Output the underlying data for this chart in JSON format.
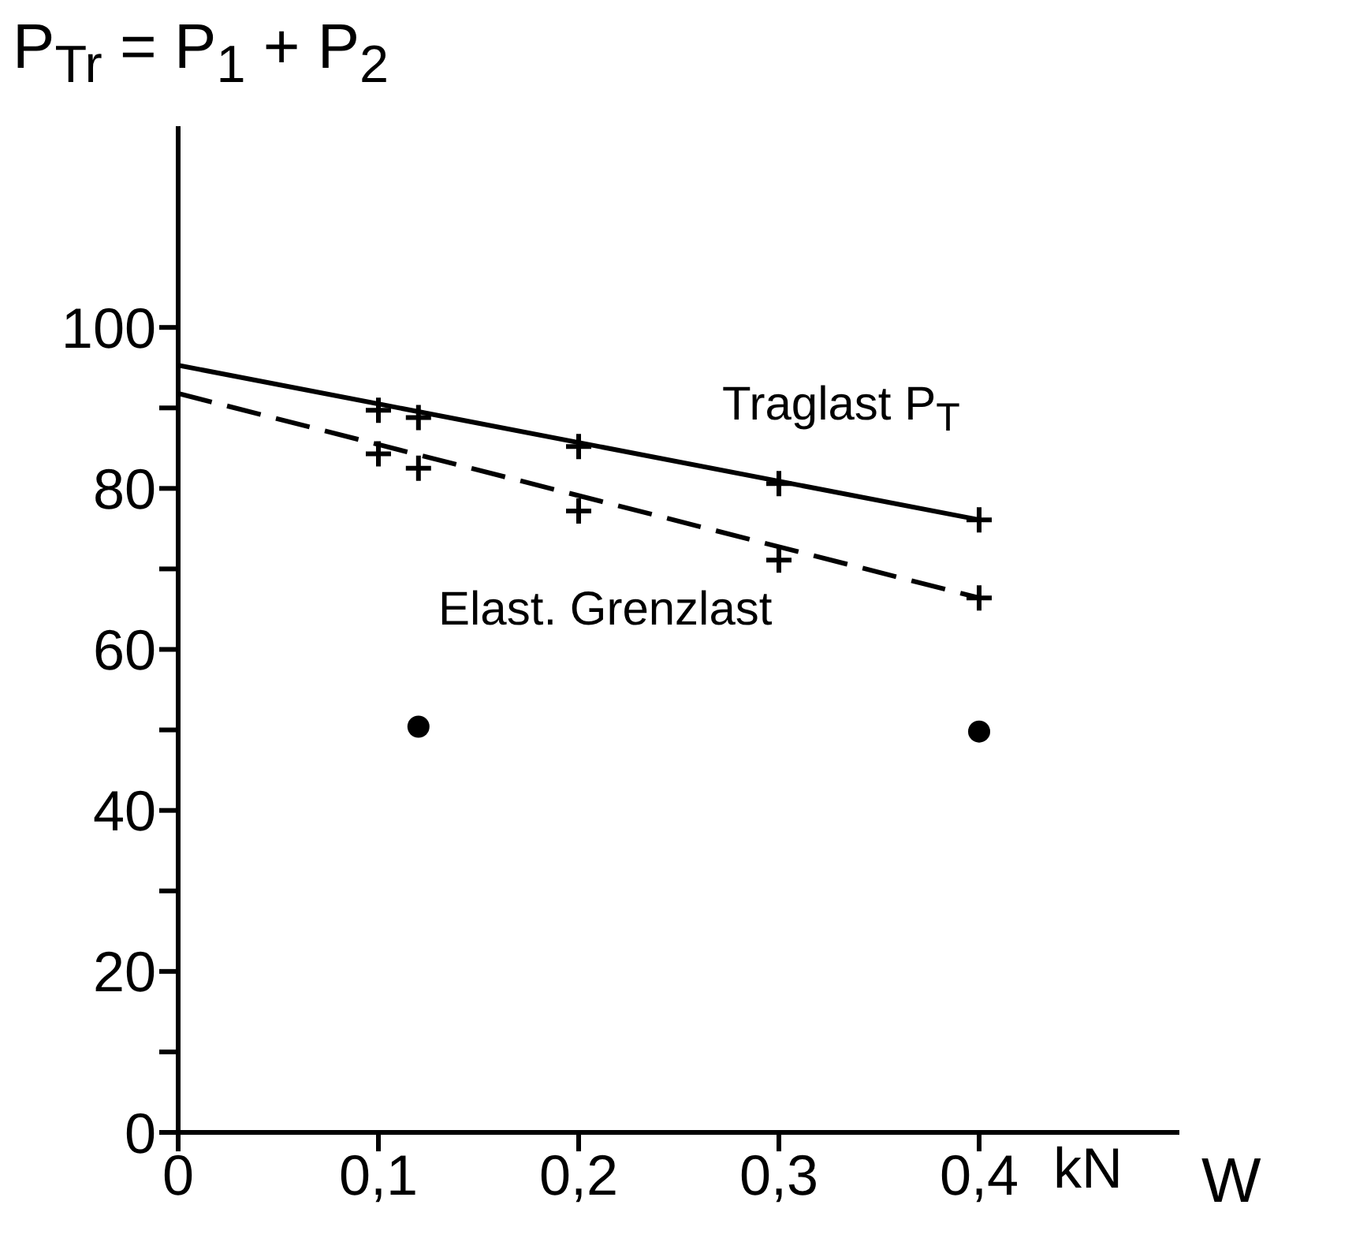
{
  "chart_data": {
    "type": "line",
    "ylabel": "P$_{Tr}$ = P$_{1}$ + P$_{2}$",
    "xlabel": "W",
    "xlim": [
      0,
      0.5
    ],
    "xticks": [
      0,
      {
        "value": 0.1,
        "label": "0,1"
      },
      {
        "value": 0.2,
        "label": "0,2"
      },
      {
        "value": 0.3,
        "label": "0,3"
      },
      {
        "value": 0.4,
        "label": "0,4"
      }
    ],
    "ylim": [
      0,
      125
    ],
    "yticks": [
      0,
      {
        "value": 10,
        "label": null
      },
      20,
      {
        "value": 30,
        "label": null
      },
      40,
      {
        "value": 50,
        "label": null
      },
      60,
      {
        "value": 70,
        "label": null
      },
      80,
      {
        "value": 90,
        "label": null
      },
      100
    ],
    "grid": false,
    "series": [
      {
        "x": [
          0,
          0.4
        ],
        "values": [
          95.3,
          76.1
        ],
        "color": "#000000",
        "line_style": "solid",
        "marker": "none"
      },
      {
        "x": [
          0,
          0.4
        ],
        "values": [
          91.8,
          66.4
        ],
        "color": "#000000",
        "line_style": "dashed",
        "marker": "none"
      },
      {
        "type": "scatter",
        "x": [
          0.1,
          0.12,
          0.2,
          0.3,
          0.4
        ],
        "values": [
          89.7,
          88.8,
          85.2,
          80.6,
          76.1
        ],
        "color": "#000000",
        "marker": "cross"
      },
      {
        "type": "scatter",
        "x": [
          0.1,
          0.12,
          0.2,
          0.3,
          0.4
        ],
        "values": [
          84.3,
          82.5,
          77.2,
          71.1,
          66.4
        ],
        "color": "#000000",
        "marker": "cross"
      },
      {
        "type": "scatter",
        "x": [
          0.12,
          0.4
        ],
        "values": [
          50.4,
          49.8
        ],
        "color": "#000000",
        "marker": "circle"
      }
    ],
    "annotations": [
      "Traglast P$_{T}$",
      "Elast. Grenzlast",
      "kN"
    ]
  }
}
